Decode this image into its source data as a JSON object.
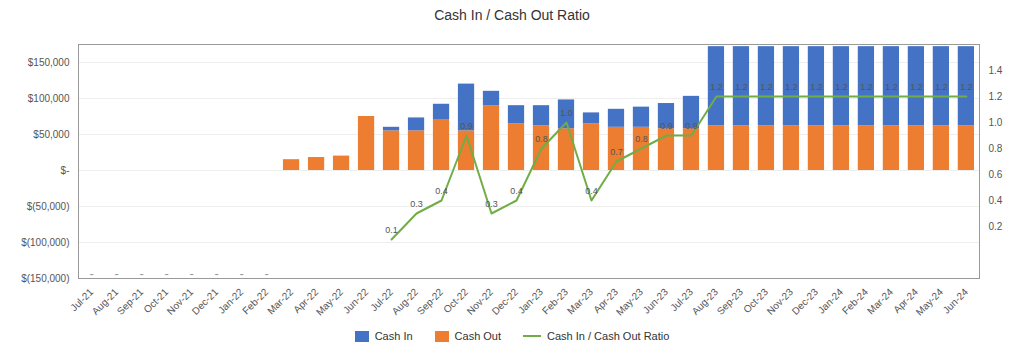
{
  "chart_data": {
    "type": "bar",
    "title": "Cash In / Cash Out Ratio",
    "categories": [
      "Jul-21",
      "Aug-21",
      "Sep-21",
      "Oct-21",
      "Nov-21",
      "Dec-21",
      "Jan-22",
      "Feb-22",
      "Mar-22",
      "Apr-22",
      "May-22",
      "Jun-22",
      "Jul-22",
      "Aug-22",
      "Sep-22",
      "Oct-22",
      "Nov-22",
      "Dec-22",
      "Jan-23",
      "Feb-23",
      "Mar-23",
      "Apr-23",
      "May-23",
      "Jun-23",
      "Jul-23",
      "Aug-23",
      "Sep-23",
      "Oct-23",
      "Nov-23",
      "Dec-23",
      "Jan-24",
      "Feb-24",
      "Mar-24",
      "Apr-24",
      "May-24",
      "Jun-24"
    ],
    "stacked": true,
    "series": [
      {
        "name": "Cash In",
        "type": "bar",
        "color": "#4472C4",
        "values": [
          0,
          0,
          0,
          0,
          0,
          0,
          0,
          0,
          0,
          0,
          0,
          0,
          5000,
          18000,
          22000,
          65000,
          20000,
          25000,
          28000,
          40000,
          15000,
          25000,
          28000,
          35000,
          45000,
          110000,
          110000,
          110000,
          110000,
          110000,
          110000,
          110000,
          110000,
          110000,
          110000,
          110000
        ]
      },
      {
        "name": "Cash Out",
        "type": "bar",
        "color": "#ED7D31",
        "values": [
          0,
          0,
          0,
          0,
          0,
          0,
          0,
          0,
          15000,
          18000,
          20000,
          75000,
          55000,
          55000,
          70000,
          55000,
          90000,
          65000,
          62000,
          58000,
          65000,
          60000,
          60000,
          58000,
          58000,
          62000,
          62000,
          62000,
          62000,
          62000,
          62000,
          62000,
          62000,
          62000,
          62000,
          62000
        ]
      },
      {
        "name": "Cash In / Cash Out Ratio",
        "type": "line",
        "axis": "y2",
        "color": "#70AD47",
        "data_labels": true,
        "values": [
          null,
          null,
          null,
          null,
          null,
          null,
          null,
          null,
          null,
          null,
          null,
          null,
          0.1,
          0.3,
          0.4,
          0.9,
          0.3,
          0.4,
          0.8,
          1.0,
          0.4,
          0.7,
          0.8,
          0.9,
          0.9,
          1.2,
          1.2,
          1.2,
          1.2,
          1.2,
          1.2,
          1.2,
          1.2,
          1.2,
          1.2,
          1.2
        ],
        "value_labels": [
          null,
          null,
          null,
          null,
          null,
          null,
          null,
          null,
          null,
          null,
          null,
          null,
          "0.1",
          "0.3",
          "0.4",
          "0.9",
          "0.3",
          "0.4",
          "0.8",
          "1.0",
          "0.4",
          "0.7",
          "0.8",
          "0.9",
          "0.9",
          "1.2",
          "1.2",
          "1.2",
          "1.2",
          "1.2",
          "1.2",
          "1.2",
          "1.2",
          "1.2",
          "1.2",
          "1.2"
        ]
      }
    ],
    "ylim": [
      -150000,
      175000
    ],
    "yticks": [
      {
        "value": -150000,
        "label": "$(150,000)"
      },
      {
        "value": -100000,
        "label": "$(100,000)"
      },
      {
        "value": -50000,
        "label": "$(50,000)"
      },
      {
        "value": 0,
        "label": "$-"
      },
      {
        "value": 50000,
        "label": "$50,000"
      },
      {
        "value": 100000,
        "label": "$100,000"
      },
      {
        "value": 150000,
        "label": "$150,000"
      }
    ],
    "y2lim": [
      -0.2,
      1.6
    ],
    "y2ticks": [
      0.2,
      0.4,
      0.6,
      0.8,
      {
        "value": 1.0,
        "label": "1.0"
      },
      1.2,
      1.4
    ],
    "grid": true,
    "legend": "bottom",
    "annotations": [
      {
        "text": "-",
        "x": "Jul-21",
        "y": -143000
      },
      {
        "text": "-",
        "x": "Aug-21",
        "y": -143000
      },
      {
        "text": "-",
        "x": "Sep-21",
        "y": -143000
      },
      {
        "text": "-",
        "x": "Oct-21",
        "y": -143000
      },
      {
        "text": "-",
        "x": "Nov-21",
        "y": -143000
      },
      {
        "text": "-",
        "x": "Dec-21",
        "y": -143000
      },
      {
        "text": "-",
        "x": "Jan-22",
        "y": -143000
      },
      {
        "text": "-",
        "x": "Feb-22",
        "y": -143000
      }
    ]
  }
}
